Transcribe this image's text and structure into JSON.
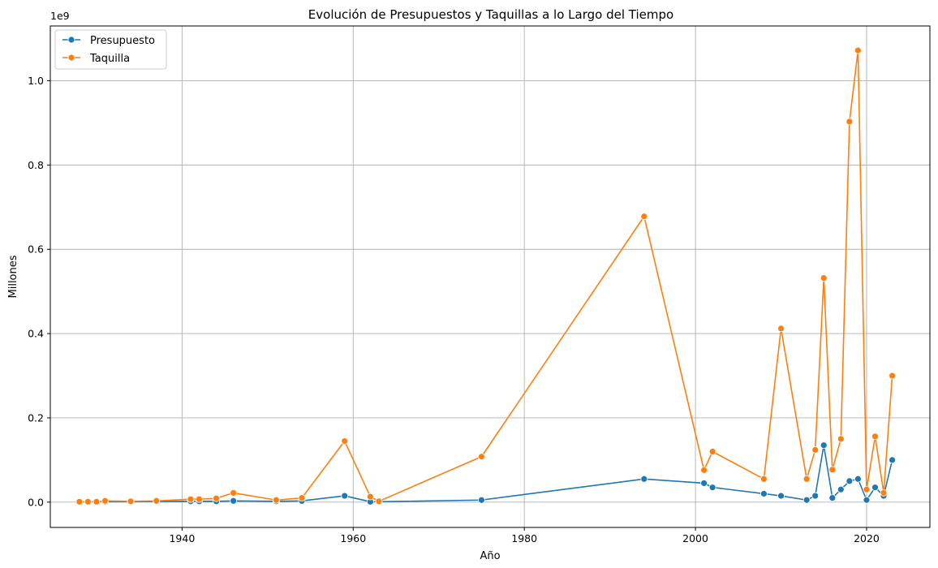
{
  "chart_data": {
    "type": "line",
    "title": "Evolución de Presupuestos y Taquillas a lo Largo del Tiempo",
    "xlabel": "Año",
    "ylabel": "Millones",
    "y_offset_label": "1e9",
    "xlim": [
      1924.6,
      2027.4
    ],
    "ylim": [
      -0.06,
      1.13
    ],
    "x_ticks": [
      1940,
      1960,
      1980,
      2000,
      2020
    ],
    "y_ticks": [
      0.0,
      0.2,
      0.4,
      0.6,
      0.8,
      1.0
    ],
    "y_tick_labels": [
      "0.0",
      "0.2",
      "0.4",
      "0.6",
      "0.8",
      "1.0"
    ],
    "grid": true,
    "legend_position": "top-left",
    "series": [
      {
        "name": "Presupuesto",
        "color": "#1f77b4",
        "x": [
          1928,
          1929,
          1930,
          1931,
          1934,
          1937,
          1941,
          1942,
          1944,
          1946,
          1951,
          1954,
          1959,
          1962,
          1963,
          1975,
          1994,
          2001,
          2002,
          2008,
          2010,
          2013,
          2014,
          2015,
          2016,
          2017,
          2018,
          2019,
          2020,
          2021,
          2022,
          2023
        ],
        "values": [
          0.001,
          0.001,
          0.001,
          0.001,
          0.001,
          0.0015,
          0.002,
          0.002,
          0.002,
          0.003,
          0.002,
          0.003,
          0.015,
          0.001,
          0.001,
          0.005,
          0.055,
          0.045,
          0.035,
          0.02,
          0.015,
          0.005,
          0.015,
          0.135,
          0.01,
          0.03,
          0.05,
          0.055,
          0.005,
          0.035,
          0.015,
          0.1
        ]
      },
      {
        "name": "Taquilla",
        "color": "#ff7f0e",
        "x": [
          1928,
          1929,
          1930,
          1931,
          1934,
          1937,
          1941,
          1942,
          1944,
          1946,
          1951,
          1954,
          1959,
          1962,
          1963,
          1975,
          1994,
          2001,
          2002,
          2008,
          2010,
          2013,
          2014,
          2015,
          2016,
          2017,
          2018,
          2019,
          2020,
          2021,
          2022,
          2023
        ],
        "values": [
          0.001,
          0.001,
          0.001,
          0.003,
          0.002,
          0.003,
          0.007,
          0.007,
          0.009,
          0.022,
          0.005,
          0.01,
          0.145,
          0.013,
          0.002,
          0.108,
          0.678,
          0.076,
          0.12,
          0.055,
          0.412,
          0.055,
          0.124,
          0.532,
          0.077,
          0.15,
          0.903,
          1.072,
          0.03,
          0.156,
          0.022,
          0.3
        ]
      }
    ]
  }
}
